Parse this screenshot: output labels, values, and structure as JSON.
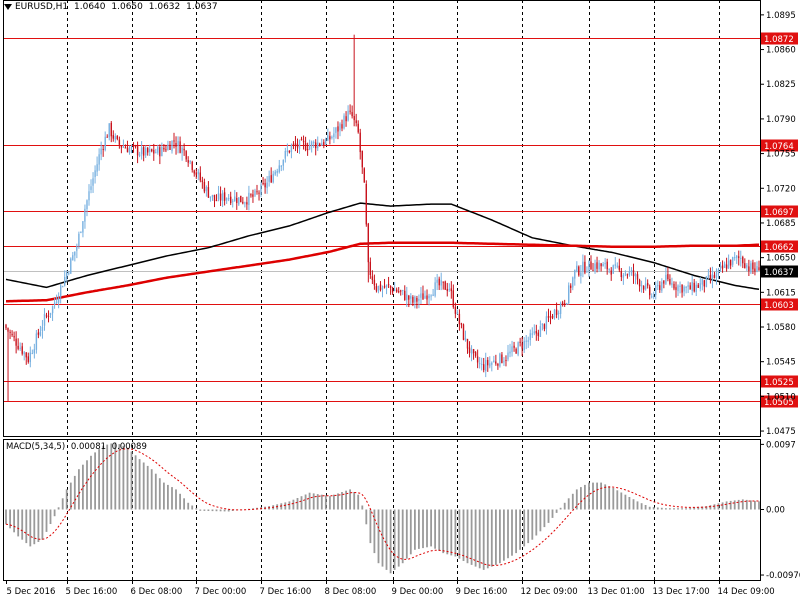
{
  "header": {
    "symbol": "EURUSD,H1",
    "open": "1.0640",
    "high": "1.0650",
    "low": "1.0632",
    "close": "1.0637"
  },
  "macd": {
    "label": "MACD(5,34,5)",
    "value1": "0.00081",
    "value2": "0.00089",
    "ticks": [
      "0.0097",
      "0.00",
      "-0.00976"
    ]
  },
  "chart_data": {
    "type": "candlestick",
    "symbol": "EURUSD",
    "timeframe": "H1",
    "ylim": [
      1.047,
      1.091
    ],
    "price_ticks": [
      "1.0895",
      "1.0860",
      "1.0825",
      "1.0790",
      "1.0755",
      "1.0720",
      "1.0685",
      "1.0650",
      "1.0615",
      "1.0580",
      "1.0545",
      "1.0510",
      "1.0475"
    ],
    "x_labels": [
      "5 Dec 2016",
      "5 Dec 16:00",
      "6 Dec 08:00",
      "7 Dec 00:00",
      "7 Dec 16:00",
      "8 Dec 08:00",
      "9 Dec 00:00",
      "9 Dec 16:00",
      "12 Dec 09:00",
      "13 Dec 01:00",
      "13 Dec 17:00",
      "14 Dec 09:00"
    ],
    "levels": [
      {
        "value": 1.0872,
        "label": "1.0872"
      },
      {
        "value": 1.0764,
        "label": "1.0764"
      },
      {
        "value": 1.0697,
        "label": "1.0697"
      },
      {
        "value": 1.0662,
        "label": "1.0662"
      },
      {
        "value": 1.0603,
        "label": "1.0603"
      },
      {
        "value": 1.0525,
        "label": "1.0525"
      },
      {
        "value": 1.0505,
        "label": "1.0505"
      }
    ],
    "current_price": {
      "value": 1.0637,
      "label": "1.0637"
    },
    "price_anchors": [
      [
        0,
        1.0582
      ],
      [
        4,
        1.057
      ],
      [
        8,
        1.056
      ],
      [
        12,
        1.0548
      ],
      [
        16,
        1.0568
      ],
      [
        20,
        1.0588
      ],
      [
        24,
        1.06
      ],
      [
        28,
        1.062
      ],
      [
        32,
        1.064
      ],
      [
        36,
        1.0662
      ],
      [
        40,
        1.07
      ],
      [
        44,
        1.073
      ],
      [
        48,
        1.076
      ],
      [
        52,
        1.078
      ],
      [
        56,
        1.0765
      ],
      [
        62,
        1.076
      ],
      [
        70,
        1.0755
      ],
      [
        78,
        1.0758
      ],
      [
        84,
        1.0768
      ],
      [
        90,
        1.0755
      ],
      [
        96,
        1.0732
      ],
      [
        100,
        1.0718
      ],
      [
        104,
        1.0708
      ],
      [
        110,
        1.0712
      ],
      [
        118,
        1.0708
      ],
      [
        124,
        1.0712
      ],
      [
        130,
        1.0725
      ],
      [
        136,
        1.0745
      ],
      [
        142,
        1.0762
      ],
      [
        148,
        1.0763
      ],
      [
        154,
        1.0765
      ],
      [
        160,
        1.0768
      ],
      [
        165,
        1.078
      ],
      [
        170,
        1.0795
      ],
      [
        172,
        1.0792
      ],
      [
        175,
        1.0775
      ],
      [
        178,
        1.072
      ],
      [
        180,
        1.064
      ],
      [
        184,
        1.062
      ],
      [
        190,
        1.062
      ],
      [
        196,
        1.0615
      ],
      [
        202,
        1.0605
      ],
      [
        208,
        1.0612
      ],
      [
        214,
        1.0622
      ],
      [
        220,
        1.062
      ],
      [
        224,
        1.059
      ],
      [
        228,
        1.0565
      ],
      [
        232,
        1.0548
      ],
      [
        236,
        1.054
      ],
      [
        242,
        1.0545
      ],
      [
        248,
        1.055
      ],
      [
        254,
        1.056
      ],
      [
        260,
        1.0568
      ],
      [
        266,
        1.058
      ],
      [
        272,
        1.0595
      ],
      [
        278,
        1.061
      ],
      [
        282,
        1.0635
      ],
      [
        286,
        1.064
      ],
      [
        292,
        1.0643
      ],
      [
        298,
        1.064
      ],
      [
        304,
        1.0636
      ],
      [
        310,
        1.0634
      ],
      [
        316,
        1.0622
      ],
      [
        320,
        1.061
      ],
      [
        326,
        1.0628
      ],
      [
        332,
        1.0622
      ],
      [
        338,
        1.0618
      ],
      [
        346,
        1.0624
      ],
      [
        352,
        1.0632
      ],
      [
        358,
        1.0645
      ],
      [
        364,
        1.065
      ],
      [
        368,
        1.064
      ],
      [
        372,
        1.0637
      ]
    ],
    "ma_slow_anchors": [
      [
        0,
        1.0628
      ],
      [
        20,
        1.062
      ],
      [
        40,
        1.0632
      ],
      [
        60,
        1.0642
      ],
      [
        80,
        1.0652
      ],
      [
        100,
        1.066
      ],
      [
        120,
        1.0672
      ],
      [
        140,
        1.0682
      ],
      [
        160,
        1.0696
      ],
      [
        175,
        1.0705
      ],
      [
        190,
        1.0702
      ],
      [
        210,
        1.0704
      ],
      [
        220,
        1.0704
      ],
      [
        240,
        1.0688
      ],
      [
        260,
        1.067
      ],
      [
        280,
        1.0662
      ],
      [
        300,
        1.0655
      ],
      [
        320,
        1.0645
      ],
      [
        340,
        1.0632
      ],
      [
        360,
        1.0622
      ],
      [
        372,
        1.0618
      ]
    ],
    "ma_fast_anchors": [
      [
        0,
        1.0606
      ],
      [
        20,
        1.0607
      ],
      [
        40,
        1.0615
      ],
      [
        60,
        1.0622
      ],
      [
        80,
        1.063
      ],
      [
        100,
        1.0636
      ],
      [
        120,
        1.0642
      ],
      [
        140,
        1.0648
      ],
      [
        160,
        1.0656
      ],
      [
        175,
        1.0664
      ],
      [
        190,
        1.0665
      ],
      [
        220,
        1.0665
      ],
      [
        240,
        1.0664
      ],
      [
        260,
        1.0663
      ],
      [
        280,
        1.0662
      ],
      [
        300,
        1.0661
      ],
      [
        320,
        1.0661
      ],
      [
        340,
        1.0662
      ],
      [
        360,
        1.0662
      ],
      [
        372,
        1.0663
      ]
    ],
    "macd_ylim": [
      -0.0105,
      0.0105
    ],
    "macd_anchors": [
      [
        0,
        -0.0022
      ],
      [
        6,
        -0.004
      ],
      [
        12,
        -0.0055
      ],
      [
        18,
        -0.0045
      ],
      [
        24,
        -0.001
      ],
      [
        30,
        0.003
      ],
      [
        36,
        0.006
      ],
      [
        42,
        0.008
      ],
      [
        48,
        0.0095
      ],
      [
        54,
        0.01
      ],
      [
        60,
        0.0092
      ],
      [
        66,
        0.0075
      ],
      [
        72,
        0.006
      ],
      [
        78,
        0.004
      ],
      [
        84,
        0.003
      ],
      [
        90,
        0.001
      ],
      [
        96,
        -0.0002
      ],
      [
        110,
        -0.0003
      ],
      [
        130,
        0.0005
      ],
      [
        140,
        0.0012
      ],
      [
        150,
        0.0025
      ],
      [
        160,
        0.002
      ],
      [
        170,
        0.003
      ],
      [
        175,
        0.002
      ],
      [
        180,
        -0.005
      ],
      [
        184,
        -0.008
      ],
      [
        190,
        -0.0095
      ],
      [
        196,
        -0.008
      ],
      [
        202,
        -0.006
      ],
      [
        210,
        -0.0055
      ],
      [
        216,
        -0.0065
      ],
      [
        222,
        -0.007
      ],
      [
        228,
        -0.008
      ],
      [
        236,
        -0.009
      ],
      [
        244,
        -0.008
      ],
      [
        252,
        -0.0065
      ],
      [
        260,
        -0.0045
      ],
      [
        268,
        -0.002
      ],
      [
        276,
        0.001
      ],
      [
        282,
        0.003
      ],
      [
        288,
        0.004
      ],
      [
        294,
        0.004
      ],
      [
        300,
        0.0032
      ],
      [
        306,
        0.0022
      ],
      [
        312,
        0.0012
      ],
      [
        318,
        0.0004
      ],
      [
        326,
        0.0002
      ],
      [
        336,
        0.0002
      ],
      [
        346,
        0.0005
      ],
      [
        356,
        0.0012
      ],
      [
        364,
        0.0015
      ],
      [
        372,
        0.0012
      ]
    ],
    "colors": {
      "bull": "#77b0e0",
      "bear": "#c8121c",
      "ma_slow": "#000000",
      "ma_fast": "#dd0000",
      "level_line": "#e01010",
      "histogram": "#9a9a9a",
      "signal": "#dd0000",
      "grid": "#000000"
    }
  }
}
